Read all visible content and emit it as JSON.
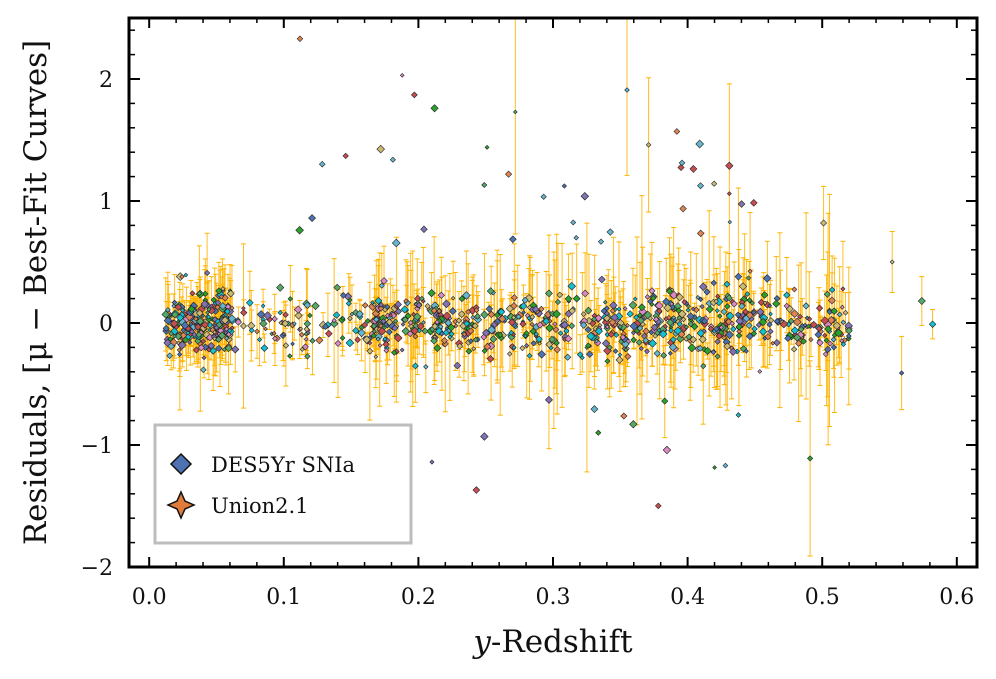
{
  "chart_data": {
    "type": "scatter",
    "title": "",
    "xlabel_italic": "y",
    "xlabel_rest": "-Redshift",
    "ylabel": "Residuals, [μ − Best-Fit Curves]",
    "xlim": [
      -0.015,
      0.615
    ],
    "ylim": [
      -2.0,
      2.5
    ],
    "x_ticks": [
      0.0,
      0.1,
      0.2,
      0.3,
      0.4,
      0.5,
      0.6
    ],
    "x_tick_labels": [
      "0.0",
      "0.1",
      "0.2",
      "0.3",
      "0.4",
      "0.5",
      "0.6"
    ],
    "y_ticks": [
      -2,
      -1,
      0,
      1,
      2
    ],
    "y_tick_labels": [
      "−2",
      "−1",
      "0",
      "1",
      "2"
    ],
    "errorbar_color": "#FFB300",
    "marker_colors": [
      "#4C72B0",
      "#55A868",
      "#C44E52",
      "#8172B2",
      "#CCB974",
      "#64B5CD",
      "#DD8452",
      "#DA8BC3",
      "#2ca02c",
      "#17becf"
    ],
    "legend": {
      "location": "lower-left",
      "entries": [
        {
          "label": "DES5Yr SNIa",
          "marker": "diamond",
          "color": "#4C72B0"
        },
        {
          "label": "Union2.1",
          "marker": "star4",
          "color": "#E07B39"
        }
      ]
    },
    "highlighted_points": [
      {
        "x": 0.112,
        "y": 2.33,
        "err": 0.0
      },
      {
        "x": 0.188,
        "y": 2.03,
        "err": 0.0
      },
      {
        "x": 0.197,
        "y": 1.87,
        "err": 0.0
      },
      {
        "x": 0.212,
        "y": 1.76,
        "err": 0.0
      },
      {
        "x": 0.272,
        "y": 1.73,
        "err": 1.0
      },
      {
        "x": 0.355,
        "y": 1.91,
        "err": 0.7
      },
      {
        "x": 0.371,
        "y": 1.46,
        "err": 0.55
      },
      {
        "x": 0.392,
        "y": 1.57,
        "err": 0.0
      },
      {
        "x": 0.146,
        "y": 1.37,
        "err": 0.0
      },
      {
        "x": 0.251,
        "y": 1.44,
        "err": 0.0
      },
      {
        "x": 0.267,
        "y": 1.22,
        "err": 0.0
      },
      {
        "x": 0.249,
        "y": -0.93,
        "err": 0.0
      },
      {
        "x": 0.491,
        "y": -1.11,
        "err": 0.8
      },
      {
        "x": 0.121,
        "y": 0.86,
        "err": 0.0
      },
      {
        "x": 0.431,
        "y": 1.06,
        "err": 0.9
      },
      {
        "x": 0.501,
        "y": 0.82,
        "err": 0.3
      },
      {
        "x": 0.552,
        "y": 0.5,
        "err": 0.25
      },
      {
        "x": 0.574,
        "y": 0.18,
        "err": 0.2
      },
      {
        "x": 0.582,
        "y": -0.01,
        "err": 0.12
      },
      {
        "x": 0.559,
        "y": -0.41,
        "err": 0.3
      },
      {
        "x": 0.383,
        "y": -0.64,
        "err": 0.3
      },
      {
        "x": 0.297,
        "y": -0.63,
        "err": 0.4
      }
    ],
    "bulk_series": {
      "count": 1100,
      "x_range": [
        0.012,
        0.52
      ],
      "y_center": 0.0,
      "y_spread": 0.13,
      "description": "dense band of residuals near zero with orange error bars"
    }
  }
}
